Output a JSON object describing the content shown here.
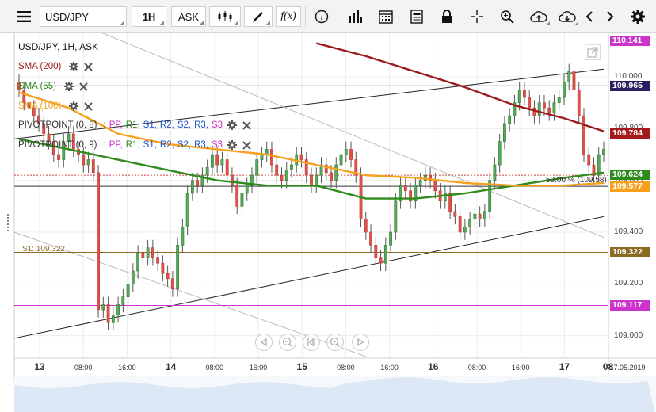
{
  "toolbar": {
    "symbol": "USD/JPY",
    "timeframe": "1H",
    "price_type": "ASK",
    "fx_label": "f(x)"
  },
  "chart_header": "USD/JPY, 1H, ASK",
  "indicators": [
    {
      "label": "SMA (200)",
      "color": "#9b1b1b"
    },
    {
      "label": "SMA (55)",
      "color": "#2e8b1a"
    },
    {
      "label": "SMA (100)",
      "color": "#f5a11c"
    }
  ],
  "pivots": [
    {
      "name": "PIVOTPOINT (0, 8)",
      "sep": ":",
      "levels": [
        "PP,",
        "R1,",
        "S1,",
        "R2,",
        "S2,",
        "R3,",
        "S3"
      ]
    },
    {
      "name": "PIVOTPOINT (0, 9)",
      "sep": ":",
      "levels": [
        "PP,",
        "R1,",
        "S1,",
        "R2,",
        "S2,",
        "R3,",
        "S3"
      ]
    }
  ],
  "pivot_level_colors": [
    "#cc33cc",
    "#2e8b1a",
    "#1a4fcf",
    "#1a4fcf",
    "#1a4fcf",
    "#1a4fcf",
    "#cc33cc"
  ],
  "annotations": {
    "s1_label": "S1: 109.322",
    "fib_label": "50.00 % (109.58)"
  },
  "price_tags": [
    {
      "value": "110.141",
      "color": "#cc33cc"
    },
    {
      "value": "109.965",
      "color": "#262060"
    },
    {
      "value": "109.784",
      "color": "#a41a1a"
    },
    {
      "value": "109.624",
      "color": "#2e8b1a"
    },
    {
      "value": "109.577",
      "color": "#f5a11c"
    },
    {
      "value": "109.322",
      "color": "#8b6b20"
    },
    {
      "value": "109.117",
      "color": "#cc33cc"
    }
  ],
  "chart_data": {
    "type": "line",
    "title": "USD/JPY, 1H, ASK",
    "ylim": [
      108.95,
      110.15
    ],
    "y_ticks": [
      "110.000",
      "109.800",
      "109.600",
      "109.400",
      "109.200",
      "109.000"
    ],
    "x_ticks": [
      "13",
      "08:00",
      "16:00",
      "14",
      "08:00",
      "16:00",
      "15",
      "08:00",
      "16:00",
      "16",
      "08:00",
      "16:00",
      "17",
      "08"
    ],
    "x_end_label": "17.05.2019",
    "grid": true,
    "candles": {
      "x": [
        0,
        1,
        2,
        3,
        4,
        5,
        6,
        7,
        8,
        9,
        10,
        11,
        12,
        13,
        14,
        15,
        16,
        17,
        18,
        19,
        20,
        21,
        22,
        23,
        24,
        25,
        26,
        27,
        28,
        29,
        30,
        31,
        32,
        33,
        34,
        35,
        36,
        37,
        38,
        39,
        40,
        41,
        42,
        43,
        44,
        45,
        46,
        47,
        48,
        49,
        50,
        51,
        52,
        53,
        54,
        55,
        56,
        57,
        58,
        59,
        60,
        61,
        62,
        63,
        64,
        65,
        66,
        67,
        68,
        69,
        70,
        71,
        72,
        73,
        74,
        75,
        76,
        77,
        78,
        79,
        80,
        81,
        82,
        83,
        84,
        85,
        86,
        87,
        88,
        89,
        90,
        91,
        92,
        93,
        94,
        95,
        96,
        97,
        98,
        99,
        100,
        101,
        102,
        103,
        104,
        105,
        106,
        107,
        108,
        109,
        110,
        111,
        112,
        113,
        114,
        115,
        116,
        117,
        118
      ],
      "open": [
        109.98,
        109.95,
        109.9,
        109.88,
        109.85,
        109.82,
        109.78,
        109.75,
        109.7,
        109.68,
        109.75,
        109.78,
        109.72,
        109.7,
        109.66,
        109.68,
        109.63,
        109.1,
        109.12,
        109.05,
        109.08,
        109.12,
        109.15,
        109.2,
        109.25,
        109.32,
        109.3,
        109.34,
        109.3,
        109.28,
        109.24,
        109.22,
        109.18,
        109.35,
        109.42,
        109.55,
        109.6,
        109.58,
        109.62,
        109.65,
        109.7,
        109.66,
        109.68,
        109.62,
        109.58,
        109.5,
        109.55,
        109.58,
        109.62,
        109.68,
        109.7,
        109.72,
        109.66,
        109.62,
        109.6,
        109.64,
        109.66,
        109.7,
        109.68,
        109.62,
        109.58,
        109.62,
        109.66,
        109.63,
        109.6,
        109.66,
        109.7,
        109.72,
        109.68,
        109.62,
        109.45,
        109.4,
        109.35,
        109.3,
        109.28,
        109.35,
        109.4,
        109.52,
        109.58,
        109.56,
        109.52,
        109.58,
        109.6,
        109.62,
        109.6,
        109.56,
        109.52,
        109.55,
        109.48,
        109.46,
        109.4,
        109.42,
        109.45,
        109.47,
        109.45,
        109.48,
        109.6,
        109.66,
        109.75,
        109.82,
        109.85,
        109.9,
        109.95,
        109.92,
        109.88,
        109.85,
        109.9,
        109.88,
        109.86,
        109.9,
        109.92,
        109.98,
        110.02,
        109.95,
        109.85,
        109.7,
        109.66,
        109.62,
        109.7
      ],
      "close": [
        109.95,
        109.9,
        109.88,
        109.85,
        109.82,
        109.78,
        109.75,
        109.7,
        109.68,
        109.75,
        109.78,
        109.72,
        109.7,
        109.66,
        109.68,
        109.63,
        109.1,
        109.12,
        109.05,
        109.08,
        109.12,
        109.15,
        109.2,
        109.25,
        109.32,
        109.3,
        109.34,
        109.3,
        109.28,
        109.24,
        109.22,
        109.18,
        109.35,
        109.42,
        109.55,
        109.6,
        109.58,
        109.62,
        109.65,
        109.7,
        109.66,
        109.68,
        109.62,
        109.58,
        109.5,
        109.55,
        109.58,
        109.62,
        109.68,
        109.7,
        109.72,
        109.66,
        109.62,
        109.6,
        109.64,
        109.66,
        109.7,
        109.68,
        109.62,
        109.58,
        109.62,
        109.66,
        109.63,
        109.6,
        109.66,
        109.7,
        109.72,
        109.68,
        109.62,
        109.45,
        109.4,
        109.35,
        109.3,
        109.28,
        109.35,
        109.4,
        109.52,
        109.58,
        109.56,
        109.52,
        109.58,
        109.6,
        109.62,
        109.6,
        109.56,
        109.52,
        109.55,
        109.48,
        109.46,
        109.4,
        109.42,
        109.45,
        109.47,
        109.45,
        109.48,
        109.6,
        109.66,
        109.75,
        109.82,
        109.85,
        109.9,
        109.95,
        109.92,
        109.88,
        109.85,
        109.9,
        109.88,
        109.86,
        109.9,
        109.92,
        109.98,
        110.02,
        109.95,
        109.85,
        109.7,
        109.66,
        109.62,
        109.7,
        109.72
      ]
    },
    "series": [
      {
        "name": "SMA (200)",
        "color": "#9b1b1b",
        "x": [
          60,
          70,
          80,
          90,
          100,
          110,
          118
        ],
        "y": [
          110.13,
          110.08,
          110.02,
          109.96,
          109.89,
          109.84,
          109.79
        ]
      },
      {
        "name": "SMA (55)",
        "color": "#2e8b1a",
        "x": [
          0,
          10,
          20,
          30,
          40,
          50,
          60,
          70,
          80,
          90,
          100,
          110,
          118
        ],
        "y": [
          109.76,
          109.72,
          109.68,
          109.64,
          109.6,
          109.58,
          109.58,
          109.53,
          109.53,
          109.55,
          109.58,
          109.61,
          109.63
        ]
      },
      {
        "name": "SMA (100)",
        "color": "#f5a11c",
        "x": [
          0,
          10,
          20,
          30,
          40,
          50,
          60,
          70,
          80,
          90,
          100,
          110,
          118
        ],
        "y": [
          109.94,
          109.88,
          109.78,
          109.74,
          109.72,
          109.7,
          109.66,
          109.62,
          109.61,
          109.59,
          109.58,
          109.58,
          109.59
        ]
      }
    ]
  }
}
